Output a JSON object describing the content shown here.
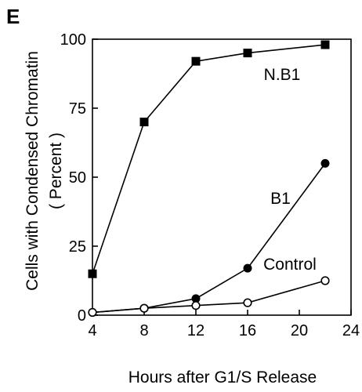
{
  "panel_label": "E",
  "chart_data": {
    "type": "line",
    "xlabel": "Hours after G1/S Release",
    "ylabel_line1": "Cells with Condensed Chromatin",
    "ylabel_line2": "( Percent )",
    "xlim": [
      4,
      24
    ],
    "ylim": [
      0,
      100
    ],
    "xticks": [
      4,
      8,
      12,
      16,
      20,
      24
    ],
    "yticks": [
      0,
      25,
      50,
      75,
      100
    ],
    "xtick_labels": [
      "4",
      "8",
      "12",
      "16",
      "20",
      "24"
    ],
    "ytick_labels": [
      "0",
      "25",
      "50",
      "75",
      "100"
    ],
    "grid": false,
    "legend": "none",
    "series": [
      {
        "name": "N.B1",
        "marker": "filled-square",
        "x": [
          4,
          8,
          12,
          16,
          22
        ],
        "y": [
          15,
          70,
          92,
          95,
          98
        ]
      },
      {
        "name": "B1",
        "marker": "filled-circle",
        "x": [
          4,
          8,
          12,
          16,
          22
        ],
        "y": [
          1,
          2.5,
          6,
          17,
          55
        ]
      },
      {
        "name": "Control",
        "marker": "open-circle",
        "x": [
          4,
          8,
          12,
          16,
          22
        ],
        "y": [
          1,
          2.5,
          3.5,
          4.5,
          12.5
        ]
      }
    ]
  }
}
